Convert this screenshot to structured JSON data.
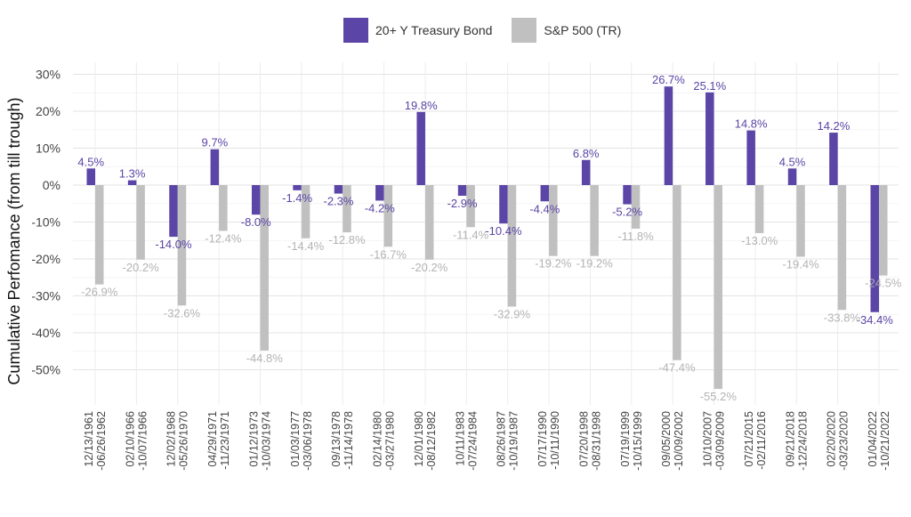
{
  "chart_data": {
    "type": "bar",
    "title": "",
    "xlabel": "",
    "ylabel": "Cumulative Perfomance (from till trough)",
    "ylim": [
      -0.58,
      0.31
    ],
    "yticks": [
      0.3,
      0.2,
      0.1,
      0.0,
      -0.1,
      -0.2,
      -0.3,
      -0.4,
      -0.5
    ],
    "ytick_labels": [
      "30%",
      "20%",
      "10%",
      "0%",
      "-10%",
      "-20%",
      "-30%",
      "-40%",
      "-50%"
    ],
    "grid": true,
    "legend_position": "top-center",
    "categories": [
      [
        "12/13/1961",
        "-06/26/1962"
      ],
      [
        "02/10/1966",
        "-10/07/1966"
      ],
      [
        "12/02/1968",
        "-05/26/1970"
      ],
      [
        "04/29/1971",
        "-11/23/1971"
      ],
      [
        "01/12/1973",
        "-10/03/1974"
      ],
      [
        "01/03/1977",
        "-03/06/1978"
      ],
      [
        "09/13/1978",
        "-11/14/1978"
      ],
      [
        "02/14/1980",
        "-03/27/1980"
      ],
      [
        "12/01/1980",
        "-08/12/1982"
      ],
      [
        "10/11/1983",
        "-07/24/1984"
      ],
      [
        "08/26/1987",
        "-10/19/1987"
      ],
      [
        "07/17/1990",
        "-10/11/1990"
      ],
      [
        "07/20/1998",
        "-08/31/1998"
      ],
      [
        "07/19/1999",
        "-10/15/1999"
      ],
      [
        "09/05/2000",
        "-10/09/2002"
      ],
      [
        "10/10/2007",
        "-03/09/2009"
      ],
      [
        "07/21/2015",
        "-02/11/2016"
      ],
      [
        "09/21/2018",
        "-12/24/2018"
      ],
      [
        "02/20/2020",
        "-03/23/2020"
      ],
      [
        "01/04/2022",
        "-10/21/2022"
      ]
    ],
    "series": [
      {
        "name": "20+ Y Treasury Bond",
        "color": "#5b45a6",
        "values": [
          0.045,
          0.013,
          -0.14,
          0.097,
          -0.08,
          -0.014,
          -0.023,
          -0.042,
          0.198,
          -0.029,
          -0.104,
          -0.044,
          0.068,
          -0.052,
          0.267,
          0.251,
          0.148,
          0.045,
          0.142,
          -0.344
        ],
        "labels": [
          "4.5%",
          "1.3%",
          "-14.0%",
          "9.7%",
          "-8.0%",
          "-1.4%",
          "-2.3%",
          "-4.2%",
          "19.8%",
          "-2.9%",
          "-10.4%",
          "-4.4%",
          "6.8%",
          "-5.2%",
          "26.7%",
          "25.1%",
          "14.8%",
          "4.5%",
          "14.2%",
          "-34.4%"
        ]
      },
      {
        "name": "S&P 500 (TR)",
        "color": "#c0c0c0",
        "values": [
          -0.269,
          -0.202,
          -0.326,
          -0.124,
          -0.448,
          -0.144,
          -0.128,
          -0.167,
          -0.202,
          -0.114,
          -0.329,
          -0.192,
          -0.192,
          -0.118,
          -0.474,
          -0.552,
          -0.13,
          -0.194,
          -0.338,
          -0.245
        ],
        "labels": [
          "-26.9%",
          "-20.2%",
          "-32.6%",
          "-12.4%",
          "-44.8%",
          "-14.4%",
          "-12.8%",
          "-16.7%",
          "-20.2%",
          "-11.4%",
          "-32.9%",
          "-19.2%",
          "-19.2%",
          "-11.8%",
          "-47.4%",
          "-55.2%",
          "-13.0%",
          "-19.4%",
          "-33.8%",
          "-24.5%"
        ]
      }
    ]
  }
}
